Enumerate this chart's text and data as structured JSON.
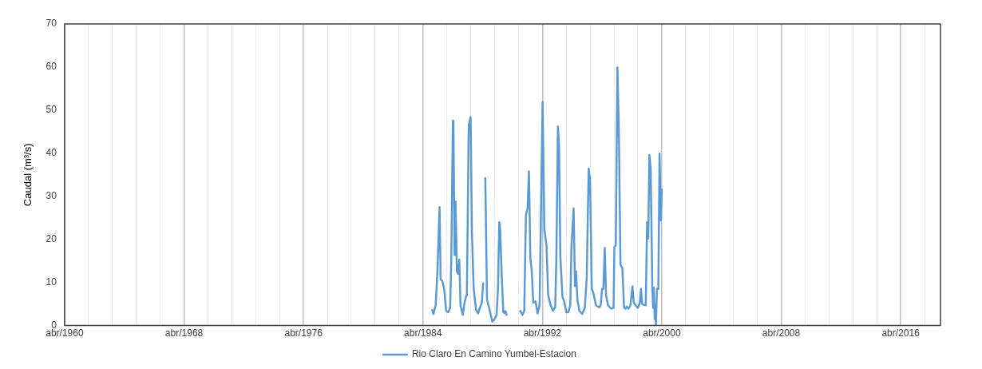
{
  "chart_data": {
    "type": "line",
    "ylabel": "Caudal (m³/s)",
    "legend": "bottom",
    "grid": "x",
    "marker": "none",
    "line_style": "solid",
    "xlim": [
      "1960-04-01",
      "2018-12-01"
    ],
    "xticks": [
      {
        "value": "1960-04-01",
        "label": "abr/1960"
      },
      {
        "value": "1961-11-07",
        "label": null
      },
      {
        "value": "1963-06-13",
        "label": null
      },
      {
        "value": "1965-01-19",
        "label": null
      },
      {
        "value": "1966-08-24",
        "label": null
      },
      {
        "value": "1968-04-01",
        "label": "abr/1968"
      },
      {
        "value": "1969-11-07",
        "label": null
      },
      {
        "value": "1971-06-13",
        "label": null
      },
      {
        "value": "1973-01-19",
        "label": null
      },
      {
        "value": "1974-08-24",
        "label": null
      },
      {
        "value": "1976-04-01",
        "label": "abr/1976"
      },
      {
        "value": "1977-11-07",
        "label": null
      },
      {
        "value": "1979-06-13",
        "label": null
      },
      {
        "value": "1981-01-19",
        "label": null
      },
      {
        "value": "1982-08-24",
        "label": null
      },
      {
        "value": "1984-04-01",
        "label": "abr/1984"
      },
      {
        "value": "1985-11-07",
        "label": null
      },
      {
        "value": "1987-06-13",
        "label": null
      },
      {
        "value": "1989-01-19",
        "label": null
      },
      {
        "value": "1990-08-24",
        "label": null
      },
      {
        "value": "1992-04-01",
        "label": "abr/1992"
      },
      {
        "value": "1993-11-07",
        "label": null
      },
      {
        "value": "1995-06-13",
        "label": null
      },
      {
        "value": "1997-01-19",
        "label": null
      },
      {
        "value": "1998-08-24",
        "label": null
      },
      {
        "value": "2000-04-01",
        "label": "abr/2000"
      },
      {
        "value": "2001-11-07",
        "label": null
      },
      {
        "value": "2003-06-13",
        "label": null
      },
      {
        "value": "2005-01-19",
        "label": null
      },
      {
        "value": "2006-08-24",
        "label": null
      },
      {
        "value": "2008-04-01",
        "label": "abr/2008"
      },
      {
        "value": "2009-11-07",
        "label": null
      },
      {
        "value": "2011-06-13",
        "label": null
      },
      {
        "value": "2013-01-19",
        "label": null
      },
      {
        "value": "2014-08-24",
        "label": null
      },
      {
        "value": "2016-04-01",
        "label": "abr/2016"
      },
      {
        "value": "2017-11-07",
        "label": null
      }
    ],
    "ylim": [
      0,
      70
    ],
    "yticks": [
      0,
      10,
      20,
      30,
      40,
      50,
      60,
      70
    ],
    "series": [
      {
        "name": "Rio Claro En Camino Yumbel-Estacion",
        "color": "#5b9bd5",
        "x": [
          "1984-11-13",
          "1984-12-15",
          "1985-02-06",
          "1985-03-22",
          "1985-05-13",
          "1985-06-08",
          "1985-07-17",
          "1985-09-02",
          "1985-10-21",
          "1985-12-08",
          "1986-01-27",
          "1986-02-23",
          "1986-04-04",
          "1986-04-17",
          "1986-05-16",
          "1986-06-08",
          "1986-07-11",
          "1986-08-06",
          "1986-09-08",
          "1986-10-07",
          "1986-12-02",
          "1987-01-14",
          "1987-02-23",
          "1987-03-12",
          "1987-04-27",
          "1987-06-12",
          "1987-07-14",
          "1987-08-26",
          "1987-10-21",
          "1987-12-12",
          "1988-01-24",
          "1988-03-12",
          "1988-04-14",
          "1988-05-01",
          "1988-06-05",
          "1988-07-17",
          "1988-09-08",
          "1988-11-23",
          "1989-01-17",
          "1989-03-08",
          "1989-04-11",
          "1989-05-13",
          "1989-06-05",
          "1989-07-11",
          "1989-08-20",
          "1989-09-12",
          "1989-10-11",
          "1989-11-06",
          "1990-03-01",
          "1990-10-07",
          "1990-12-02",
          "1991-01-14",
          "1991-02-23",
          "1991-04-07",
          "1991-05-09",
          "1991-06-12",
          "1991-07-14",
          "1991-08-23",
          "1991-10-17",
          "1991-12-05",
          "1992-01-24",
          "1992-04-07",
          "1992-05-20",
          "1992-07-11",
          "1992-08-20",
          "1992-10-14",
          "1992-12-18",
          "1993-02-09",
          "1993-03-08",
          "1993-04-17",
          "1993-05-13",
          "1993-06-15",
          "1993-08-06",
          "1993-09-18",
          "1993-11-06",
          "1993-12-25",
          "1994-02-13",
          "1994-03-12",
          "1994-05-06",
          "1994-06-08",
          "1994-07-04",
          "1994-08-06",
          "1994-09-25",
          "1994-12-02",
          "1995-02-03",
          "1995-03-22",
          "1995-05-09",
          "1995-06-12",
          "1995-07-24",
          "1995-08-26",
          "1995-11-03",
          "1996-01-24",
          "1996-02-26",
          "1996-04-01",
          "1996-05-03",
          "1996-06-05",
          "1996-07-07",
          "1996-08-26",
          "1996-11-03",
          "1997-01-07",
          "1997-01-27",
          "1997-03-02",
          "1997-04-11",
          "1997-05-13",
          "1997-06-25",
          "1997-08-09",
          "1997-09-22",
          "1997-10-24",
          "1997-11-23",
          "1998-01-07",
          "1998-02-23",
          "1998-04-14",
          "1998-05-16",
          "1998-07-01",
          "1998-08-23",
          "1998-10-11",
          "1998-11-09",
          "1998-12-05",
          "1999-01-14",
          "1999-03-05",
          "1999-04-07",
          "1999-05-06",
          "1999-06-02",
          "1999-07-04",
          "1999-08-13",
          "1999-09-02",
          "1999-09-18",
          "1999-10-11",
          "1999-10-24",
          "1999-11-09",
          "1999-12-05",
          "2000-01-07",
          "2000-02-06",
          "2000-03-08",
          "2000-04-01"
        ],
        "values": [
          3.6,
          2.7,
          4.7,
          12.6,
          27.5,
          10.7,
          10.4,
          8.5,
          3.4,
          3.1,
          4.1,
          14.8,
          47.5,
          47,
          16.4,
          28.8,
          12.6,
          12,
          15.3,
          4.7,
          2.5,
          5.3,
          6.9,
          7,
          46.5,
          48.4,
          21.2,
          8.5,
          3.7,
          2.8,
          4.1,
          5.3,
          9.8,
          null,
          34.2,
          6,
          4.1,
          0.9,
          1.5,
          2.5,
          8.5,
          24,
          22,
          11.7,
          3.1,
          2.9,
          3.4,
          2.5,
          null,
          3.4,
          2.5,
          3.4,
          25.6,
          27.5,
          35.8,
          15.5,
          13,
          5.3,
          5.6,
          2.8,
          4.7,
          51.9,
          22.4,
          18.6,
          7.2,
          4.9,
          3.4,
          4.3,
          14.8,
          46.2,
          42,
          16.1,
          6.6,
          5.6,
          3.1,
          3.1,
          4.7,
          18,
          27.2,
          9.1,
          12.6,
          6,
          3.4,
          2.7,
          4.1,
          11,
          36.4,
          33.8,
          8.5,
          7.8,
          4.7,
          4.2,
          4.7,
          8.5,
          8.5,
          18,
          7,
          4.7,
          3.9,
          4.1,
          18.3,
          18.6,
          59.9,
          46.8,
          14.2,
          13.3,
          4.1,
          3.9,
          4.4,
          3.9,
          4.7,
          9.1,
          5.3,
          4.7,
          4.1,
          5.3,
          8.5,
          5,
          4.8,
          4.7,
          24,
          20.2,
          39.6,
          36.4,
          8.8,
          4.1,
          8.8,
          1.5,
          4.7,
          0.2,
          8.5,
          8.5,
          39.9,
          24.4,
          31.6
        ]
      }
    ]
  }
}
